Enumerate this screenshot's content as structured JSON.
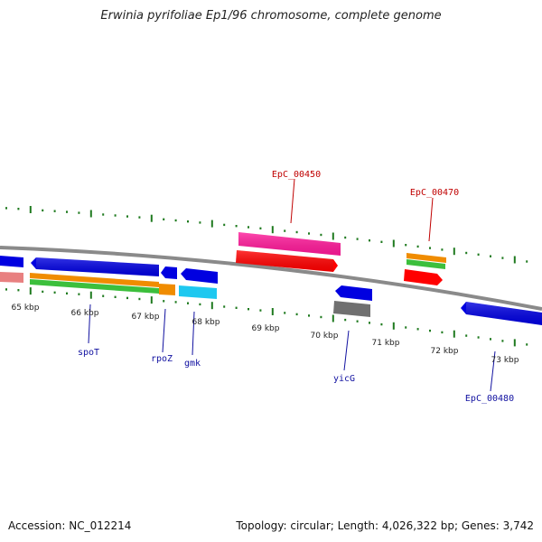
{
  "title": "Erwinia pyrifoliae Ep1/96 chromosome, complete genome",
  "footer": {
    "accession": "Accession: NC_012214",
    "topology": "Topology: circular; Length: 4,026,322 bp; Genes: 3,742"
  },
  "scale_ticks": [
    "65 kbp",
    "66 kbp",
    "67 kbp",
    "68 kbp",
    "69 kbp",
    "70 kbp",
    "71 kbp",
    "72 kbp",
    "73 kbp"
  ],
  "gene_labels": [
    {
      "text": "spoT",
      "color": "#1010a0"
    },
    {
      "text": "rpoZ",
      "color": "#1010a0"
    },
    {
      "text": "gmk",
      "color": "#1010a0"
    },
    {
      "text": "yicG",
      "color": "#1010a0"
    },
    {
      "text": "EpC_00480",
      "color": "#1010a0"
    },
    {
      "text": "EpC_00450",
      "color": "#c00000"
    },
    {
      "text": "EpC_00470",
      "color": "#c00000"
    }
  ],
  "colors": {
    "backbone": "#8a8a8a",
    "tick": "#1f7a1f",
    "cds_blue": "#0000e0",
    "orange": "#f08c00",
    "green": "#3cbf3c",
    "red": "#ff0000",
    "magenta": "#ff1a9a",
    "cyan": "#1ec8f0",
    "gray": "#707070",
    "pink": "#e88080"
  }
}
